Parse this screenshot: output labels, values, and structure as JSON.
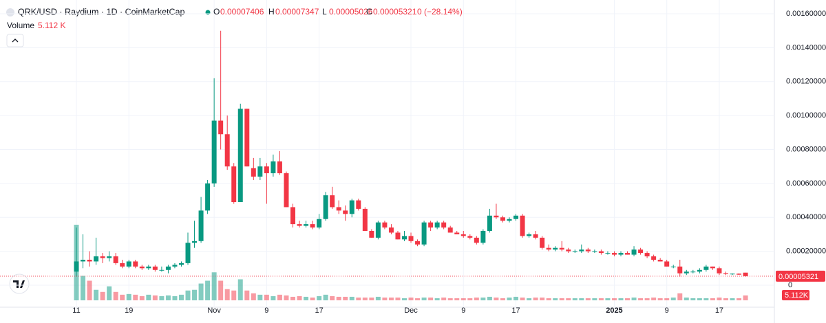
{
  "chart_data": {
    "type": "candlestick",
    "title": "QRK/USD · Raydium · 1D · CoinMarketCap",
    "legend": {
      "ohlc": [
        {
          "key": "O",
          "text": "0.00007406"
        },
        {
          "key": "H",
          "text": "0.00007347"
        },
        {
          "key": "L",
          "text": "0.00005026"
        },
        {
          "key": "C",
          "text": "0.00005321"
        }
      ],
      "change": "0 (−28.14%)",
      "volume_name": "Volume",
      "volume_text": "5.112 K"
    },
    "volume_axis_label": "5.112K",
    "up_color": "#089981",
    "down_color": "#f23645",
    "x": [
      "Oct 11",
      "Oct 12",
      "Oct 13",
      "Oct 14",
      "Oct 15",
      "Oct 16",
      "Oct 17",
      "Oct 18",
      "Oct 19",
      "Oct 20",
      "Oct 21",
      "Oct 22",
      "Oct 23",
      "Oct 24",
      "Oct 25",
      "Oct 26",
      "Oct 27",
      "Oct 28",
      "Oct 29",
      "Oct 30",
      "Oct 31",
      "Nov 1",
      "Nov 2",
      "Nov 3",
      "Nov 4",
      "Nov 5",
      "Nov 6",
      "Nov 7",
      "Nov 8",
      "Nov 9",
      "Nov 10",
      "Nov 11",
      "Nov 12",
      "Nov 13",
      "Nov 14",
      "Nov 15",
      "Nov 16",
      "Nov 17",
      "Nov 18",
      "Nov 19",
      "Nov 20",
      "Nov 21",
      "Nov 22",
      "Nov 23",
      "Nov 24",
      "Nov 25",
      "Nov 26",
      "Nov 27",
      "Nov 28",
      "Nov 29",
      "Nov 30",
      "Dec 1",
      "Dec 2",
      "Dec 3",
      "Dec 4",
      "Dec 5",
      "Dec 6",
      "Dec 7",
      "Dec 8",
      "Dec 9",
      "Dec 10",
      "Dec 11",
      "Dec 12",
      "Dec 13",
      "Dec 14",
      "Dec 15",
      "Dec 16",
      "Dec 17",
      "Dec 18",
      "Dec 19",
      "Dec 20",
      "Dec 21",
      "Dec 22",
      "Dec 23",
      "Dec 24",
      "Dec 25",
      "Dec 26",
      "Dec 27",
      "Dec 28",
      "Dec 29",
      "Dec 30",
      "Dec 31",
      "Jan 1",
      "Jan 2",
      "Jan 3",
      "Jan 4",
      "Jan 5",
      "Jan 6",
      "Jan 7",
      "Jan 8",
      "Jan 9",
      "Jan 10",
      "Jan 11",
      "Jan 12",
      "Jan 13",
      "Jan 14",
      "Jan 15",
      "Jan 16",
      "Jan 17",
      "Jan 18",
      "Jan 19",
      "Jan 20",
      "Jan 21"
    ],
    "open": [
      8e-05,
      0.00014,
      0.00015,
      0.00014,
      0.00017,
      0.00016,
      0.00017,
      0.00013,
      0.00011,
      0.00014,
      0.00011,
      0.0001,
      0.00011,
      9e-05,
      9e-05,
      0.00011,
      0.00012,
      0.00013,
      0.00025,
      0.00026,
      0.00044,
      0.0006,
      0.00097,
      0.00089,
      0.0007,
      0.00049,
      0.00104,
      0.00069,
      0.00064,
      0.0007,
      0.00066,
      0.00073,
      0.00066,
      0.00046,
      0.00036,
      0.00035,
      0.00036,
      0.00034,
      0.00039,
      0.00053,
      0.00046,
      0.00044,
      0.00042,
      0.0005,
      0.00045,
      0.00032,
      0.00028,
      0.00037,
      0.00034,
      0.00031,
      0.00027,
      0.00029,
      0.00026,
      0.00024,
      0.00037,
      0.00034,
      0.00037,
      0.00034,
      0.00031,
      0.0003,
      0.00029,
      0.00028,
      0.00025,
      0.00032,
      0.00041,
      0.0004,
      0.00038,
      0.00039,
      0.00041,
      0.00029,
      0.0003,
      0.00028,
      0.00022,
      0.00021,
      0.00022,
      0.00021,
      0.0002,
      0.0002,
      0.00021,
      0.0002,
      0.0002,
      0.00019,
      0.00019,
      0.00018,
      0.00019,
      0.00018,
      0.00021,
      0.00019,
      0.00017,
      0.00015,
      0.00014,
      0.00011,
      0.00011,
      7e-05,
      8e-05,
      8e-05,
      9e-05,
      0.00011,
      0.0001,
      7e-05,
      6.5e-05,
      6.8e-05,
      7.406e-05
    ],
    "high": [
      0.00034,
      0.0003,
      0.0002,
      0.00028,
      0.00019,
      0.0002,
      0.00019,
      0.00015,
      0.00015,
      0.00015,
      0.00012,
      0.00012,
      0.00012,
      0.00011,
      0.00012,
      0.00013,
      0.00014,
      0.00031,
      0.00038,
      0.00052,
      0.00062,
      0.00122,
      0.0015,
      0.001,
      0.00072,
      0.00107,
      0.00104,
      0.00075,
      0.00075,
      0.00072,
      0.00077,
      0.00079,
      0.00067,
      0.00048,
      0.00038,
      0.00038,
      0.00038,
      0.00042,
      0.00055,
      0.00058,
      0.0005,
      0.00047,
      0.00051,
      0.00051,
      0.00046,
      0.00033,
      0.00038,
      0.00038,
      0.00036,
      0.00032,
      0.00032,
      0.00031,
      0.00027,
      0.00038,
      0.00038,
      0.00038,
      0.00038,
      0.00035,
      0.00032,
      0.00032,
      0.0003,
      0.00029,
      0.00033,
      0.00045,
      0.00048,
      0.00041,
      0.0004,
      0.00042,
      0.00042,
      0.00031,
      0.00032,
      0.00029,
      0.00024,
      0.00023,
      0.00026,
      0.00022,
      0.00021,
      0.00024,
      0.00022,
      0.00021,
      0.00021,
      0.0002,
      0.0002,
      0.0002,
      0.0002,
      0.00023,
      0.00022,
      0.0002,
      0.00018,
      0.00016,
      0.00015,
      0.00012,
      0.00015,
      9e-05,
      9e-05,
      0.0001,
      0.00012,
      0.00011,
      0.00011,
      8e-05,
      7e-05,
      7e-05,
      7.347e-05
    ],
    "low": [
      5e-05,
      0.0001,
      0.00011,
      0.00012,
      0.00013,
      0.00014,
      0.00012,
      0.0001,
      0.0001,
      0.0001,
      9e-05,
      9e-05,
      8e-05,
      8e-05,
      7e-05,
      0.0001,
      0.00011,
      0.00012,
      0.00022,
      0.00025,
      0.00042,
      0.00058,
      0.0008,
      0.00068,
      0.00048,
      0.00049,
      0.0007,
      0.00062,
      0.00062,
      0.00048,
      0.00064,
      0.00065,
      0.00046,
      0.00034,
      0.00034,
      0.00034,
      0.00033,
      0.00033,
      0.00038,
      0.00045,
      0.00042,
      0.00038,
      0.0004,
      0.00044,
      0.00032,
      0.00028,
      0.00027,
      0.00033,
      0.0003,
      0.00027,
      0.00026,
      0.00025,
      0.00023,
      0.00023,
      0.00032,
      0.00033,
      0.00033,
      0.00031,
      0.0003,
      0.00028,
      0.00027,
      0.00024,
      0.00024,
      0.00031,
      0.00039,
      0.00037,
      0.00037,
      0.00038,
      0.00028,
      0.00028,
      0.00027,
      0.00021,
      0.0002,
      0.0002,
      0.0002,
      0.00019,
      0.00019,
      0.00019,
      0.00019,
      0.00019,
      0.00018,
      0.00018,
      0.00017,
      0.00017,
      0.00018,
      0.00017,
      0.00018,
      0.00016,
      0.00014,
      0.00014,
      0.00011,
      0.0001,
      5e-05,
      6e-05,
      7e-05,
      7e-05,
      8e-05,
      9e-05,
      6e-05,
      6e-05,
      6e-05,
      6e-05,
      5.026e-05
    ],
    "close": [
      0.00014,
      0.00015,
      0.00014,
      0.00017,
      0.00016,
      0.00017,
      0.00013,
      0.00011,
      0.00014,
      0.00011,
      0.0001,
      0.00011,
      9e-05,
      9e-05,
      0.00011,
      0.00012,
      0.00013,
      0.00025,
      0.00026,
      0.00044,
      0.0006,
      0.00097,
      0.00089,
      0.0007,
      0.00049,
      0.00104,
      0.0007,
      0.00064,
      0.0007,
      0.00066,
      0.00073,
      0.00066,
      0.00046,
      0.00036,
      0.00035,
      0.00036,
      0.00034,
      0.00039,
      0.00053,
      0.00046,
      0.00044,
      0.00042,
      0.0005,
      0.00045,
      0.00032,
      0.00028,
      0.00037,
      0.00034,
      0.00031,
      0.00027,
      0.00029,
      0.00026,
      0.00024,
      0.00037,
      0.00034,
      0.00037,
      0.00034,
      0.00031,
      0.0003,
      0.00029,
      0.00028,
      0.00025,
      0.00032,
      0.00041,
      0.0004,
      0.00038,
      0.00039,
      0.00041,
      0.00029,
      0.0003,
      0.00028,
      0.00022,
      0.00021,
      0.00022,
      0.00021,
      0.0002,
      0.0002,
      0.00021,
      0.0002,
      0.0002,
      0.00019,
      0.00019,
      0.00018,
      0.00019,
      0.00018,
      0.00021,
      0.00019,
      0.00017,
      0.00015,
      0.00014,
      0.00011,
      0.00011,
      7e-05,
      8e-05,
      8e-05,
      9e-05,
      0.00011,
      0.0001,
      7e-05,
      6.5e-05,
      6.8e-05,
      6.2e-05,
      5.321e-05
    ],
    "volume": [
      78840,
      25550,
      20440,
      10950,
      8760,
      14600,
      8760,
      5840,
      6570,
      5840,
      4380,
      5840,
      5110,
      4380,
      5110,
      4380,
      5840,
      10220,
      10950,
      17520,
      20440,
      29200,
      20440,
      11680,
      10220,
      21900,
      10220,
      7300,
      5840,
      5840,
      4380,
      5840,
      5110,
      3650,
      4380,
      3650,
      2920,
      4380,
      5840,
      4380,
      3650,
      3650,
      3650,
      2920,
      2920,
      2920,
      3650,
      2920,
      2920,
      2920,
      2190,
      2920,
      2190,
      2920,
      2920,
      2190,
      2920,
      2190,
      2190,
      2190,
      2190,
      2920,
      2920,
      3650,
      2920,
      2190,
      2920,
      3650,
      2920,
      2190,
      2920,
      2920,
      2190,
      2190,
      2190,
      2190,
      2190,
      2190,
      2190,
      2190,
      2190,
      2190,
      2190,
      2190,
      2190,
      2920,
      2190,
      2190,
      2920,
      2190,
      2190,
      2920,
      7300,
      2920,
      2190,
      2190,
      2190,
      2190,
      2920,
      2190,
      2190,
      2190,
      5112
    ],
    "ylim": [
      0,
      0.0016
    ],
    "yticks": [
      0,
      {
        "value": 0.0002,
        "label": "0.00020000"
      },
      {
        "value": 0.0004,
        "label": "0.00040000"
      },
      {
        "value": 0.0006,
        "label": "0.00060000"
      },
      {
        "value": 0.0008,
        "label": "0.00080000"
      },
      {
        "value": 0.001,
        "label": "0.00100000"
      },
      {
        "value": 0.0012,
        "label": "0.00120000"
      },
      {
        "value": 0.0014,
        "label": "0.00140000"
      },
      {
        "value": 0.0016,
        "label": "0.00160000"
      }
    ],
    "xticks": [
      {
        "value": "Oct 11",
        "label": "11"
      },
      {
        "value": "Oct 19",
        "label": "19"
      },
      {
        "value": "Nov 1",
        "label": "Nov"
      },
      {
        "value": "Nov 9",
        "label": "9"
      },
      {
        "value": "Nov 17",
        "label": "17"
      },
      {
        "value": "Dec 1",
        "label": "Dec"
      },
      {
        "value": "Dec 9",
        "label": "9"
      },
      {
        "value": "Dec 17",
        "label": "17"
      },
      {
        "value": "Jan 1",
        "label": "2025"
      },
      {
        "value": "Jan 9",
        "label": "9"
      },
      {
        "value": "Jan 17",
        "label": "17"
      }
    ],
    "grid": true
  }
}
